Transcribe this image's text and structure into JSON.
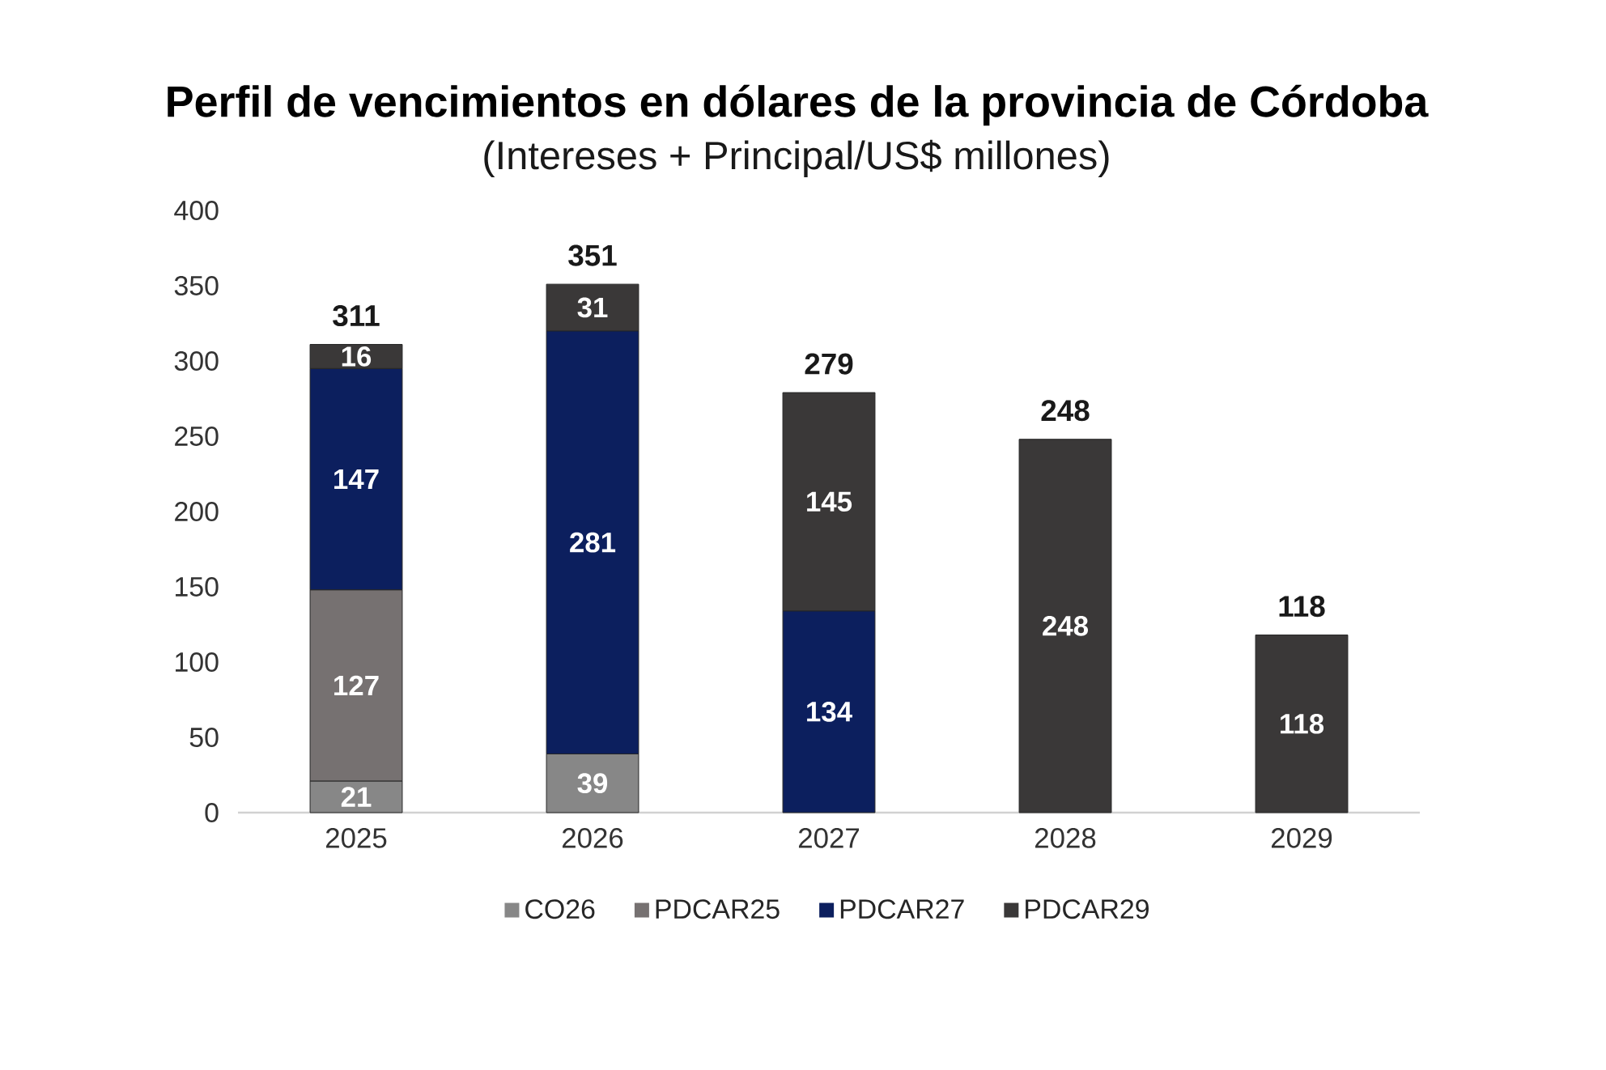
{
  "chart_data": {
    "type": "bar",
    "title": "Perfil de vencimientos en dólares de la provincia de Córdoba",
    "subtitle": "(Intereses + Principal/US$ millones)",
    "categories": [
      "2025",
      "2026",
      "2027",
      "2028",
      "2029"
    ],
    "stacked": true,
    "series": [
      {
        "name": "CO26",
        "color": "#878787",
        "values": [
          21,
          39,
          null,
          null,
          null
        ]
      },
      {
        "name": "PDCAR25",
        "color": "#767171",
        "values": [
          127,
          null,
          null,
          null,
          null
        ]
      },
      {
        "name": "PDCAR27",
        "color": "#0c1f5e",
        "values": [
          147,
          281,
          134,
          null,
          null
        ]
      },
      {
        "name": "PDCAR29",
        "color": "#3a3838",
        "values": [
          16,
          31,
          145,
          248,
          118
        ]
      }
    ],
    "ylim": [
      0,
      400
    ],
    "yticks": [
      0,
      50,
      100,
      150,
      200,
      250,
      300,
      350,
      400
    ],
    "data_labels": true,
    "totals": [
      "311",
      "351",
      "279",
      "248",
      "118"
    ],
    "legend": "bottom"
  }
}
